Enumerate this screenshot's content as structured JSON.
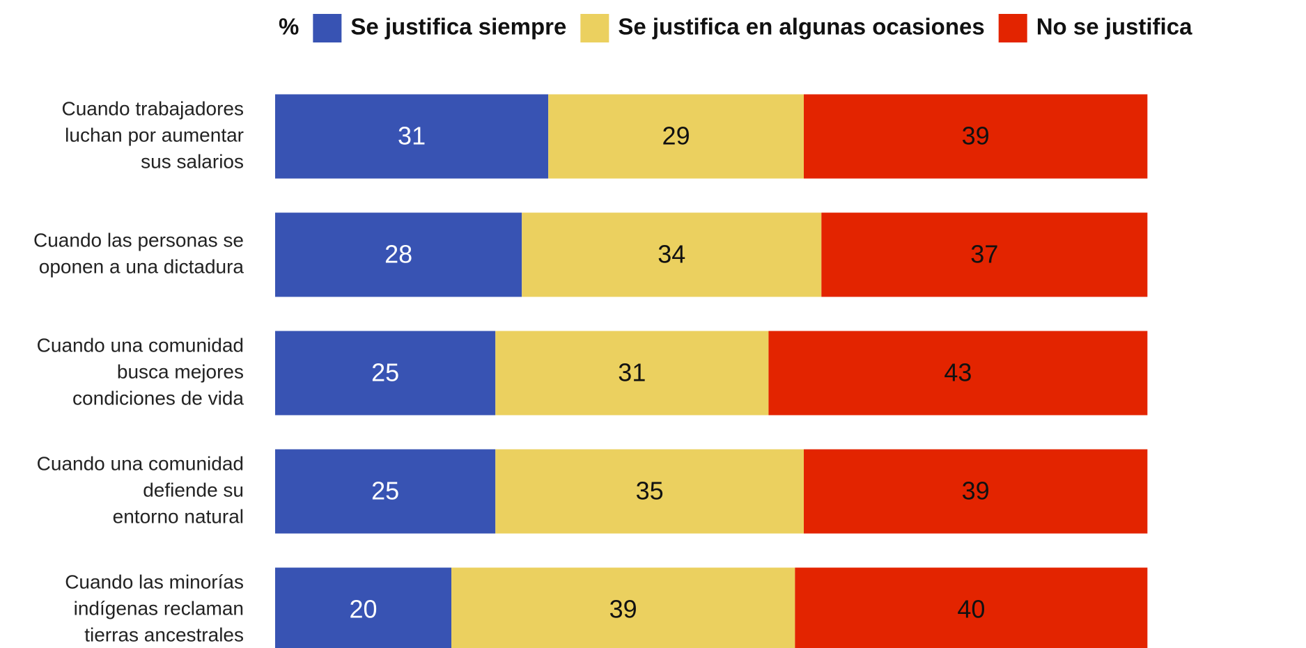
{
  "chart_data": {
    "type": "stacked_bar_horizontal",
    "unit_label": "%",
    "categories": [
      [
        "Cuando trabajadores",
        "luchan por aumentar",
        "sus salarios"
      ],
      [
        "Cuando las personas se",
        "oponen a una dictadura"
      ],
      [
        "Cuando una comunidad",
        "busca mejores",
        "condiciones de vida"
      ],
      [
        "Cuando una comunidad",
        "defiende su",
        "entorno natural"
      ],
      [
        "Cuando las minorías",
        "indígenas reclaman",
        "tierras ancestrales"
      ]
    ],
    "series": [
      {
        "name": "Se justifica siempre",
        "color": "#3853b3",
        "label_color": "#ffffff",
        "values": [
          31,
          28,
          25,
          25,
          20
        ]
      },
      {
        "name": "Se justifica en algunas ocasiones",
        "color": "#ebd05f",
        "label_color": "#111111",
        "values": [
          29,
          34,
          31,
          35,
          39
        ]
      },
      {
        "name": "No se justifica",
        "color": "#e32400",
        "label_color": "#111111",
        "values": [
          39,
          37,
          43,
          39,
          40
        ]
      }
    ],
    "xlim": [
      0,
      100
    ],
    "legend": "top"
  }
}
